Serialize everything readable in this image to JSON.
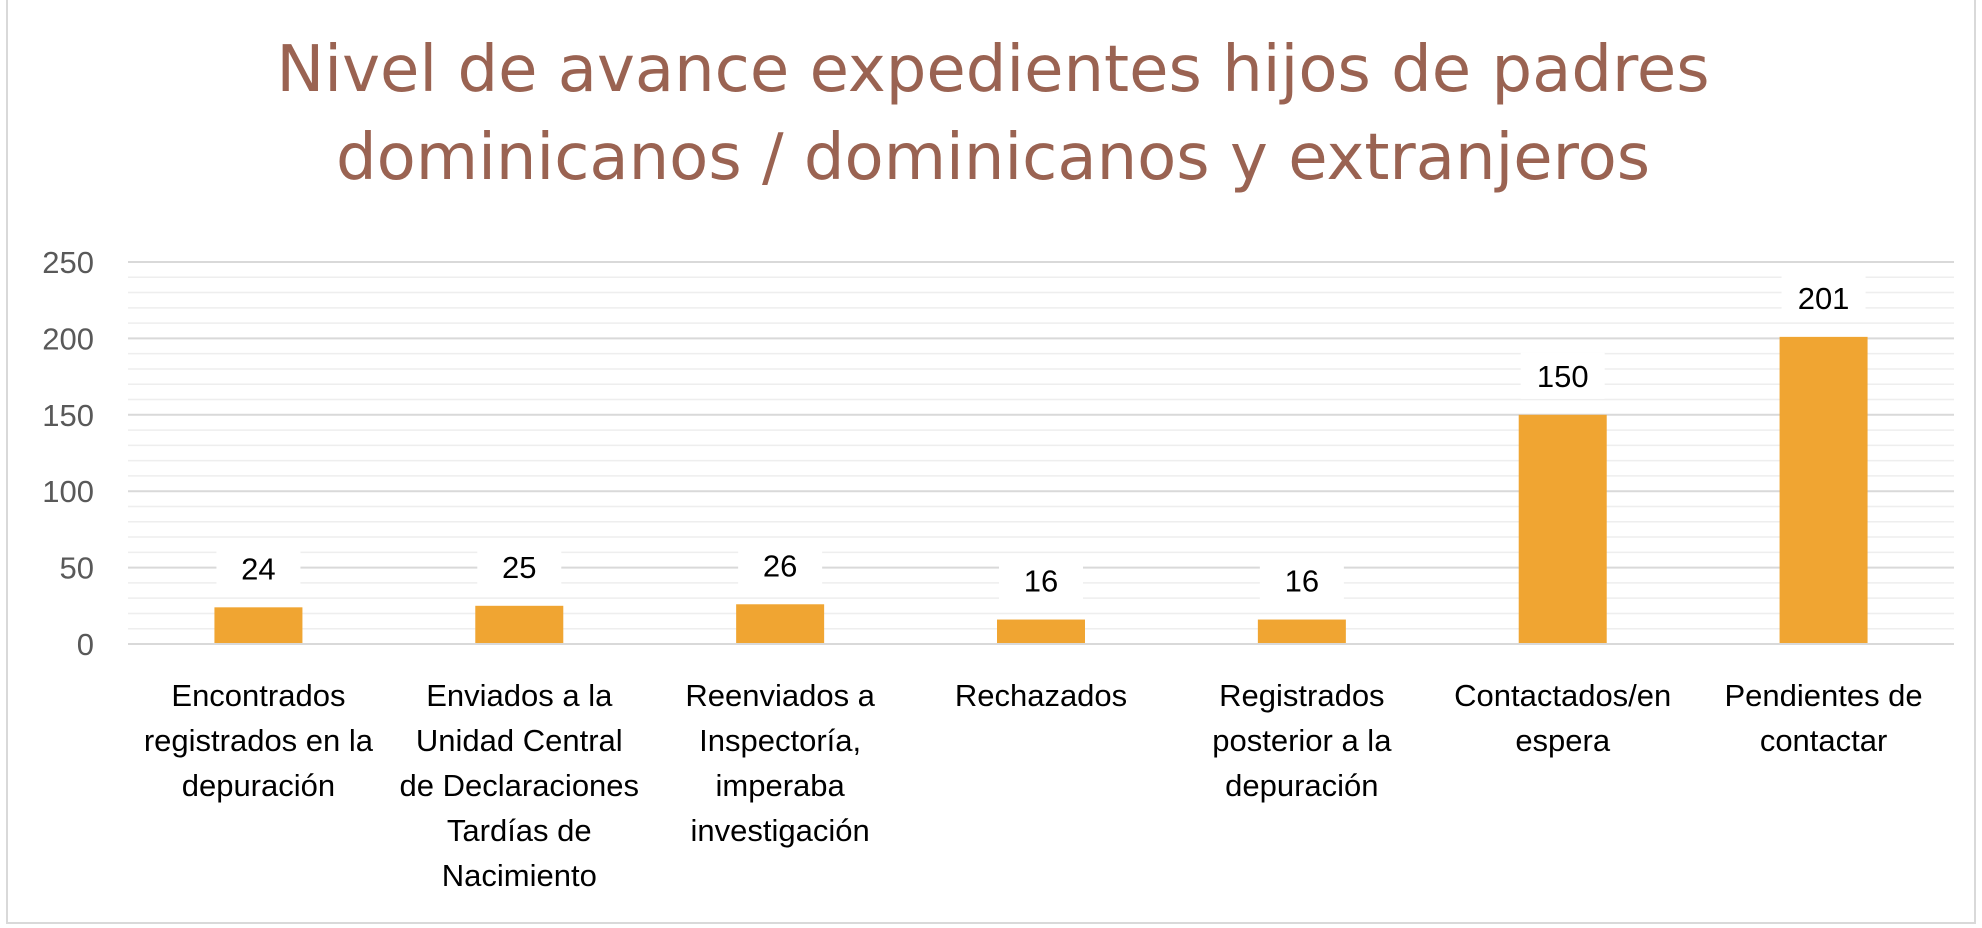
{
  "chart_data": {
    "type": "bar",
    "title": [
      "Nivel de avance expedientes hijos de padres",
      "dominicanos / dominicanos y extranjeros"
    ],
    "categories": [
      [
        "Encontrados",
        "registrados en la",
        "depuración"
      ],
      [
        "Enviados a la",
        "Unidad Central",
        "de Declaraciones",
        "Tardías de",
        "Nacimiento"
      ],
      [
        "Reenviados a",
        "Inspectoría,",
        "imperaba",
        "investigación"
      ],
      [
        "Rechazados"
      ],
      [
        "Registrados",
        "posterior a la",
        "depuración"
      ],
      [
        "Contactados/en",
        "espera"
      ],
      [
        "Pendientes de",
        "contactar"
      ]
    ],
    "values": [
      24,
      25,
      26,
      16,
      16,
      150,
      201
    ],
    "data_labels": [
      "24",
      "25",
      "26",
      "16",
      "16",
      "150",
      "201"
    ],
    "ylim": [
      0,
      250
    ],
    "yticks": [
      0,
      50,
      100,
      150,
      200,
      250
    ],
    "grid": true,
    "bar_color": "#f0a532",
    "title_color": "#9a6352"
  }
}
